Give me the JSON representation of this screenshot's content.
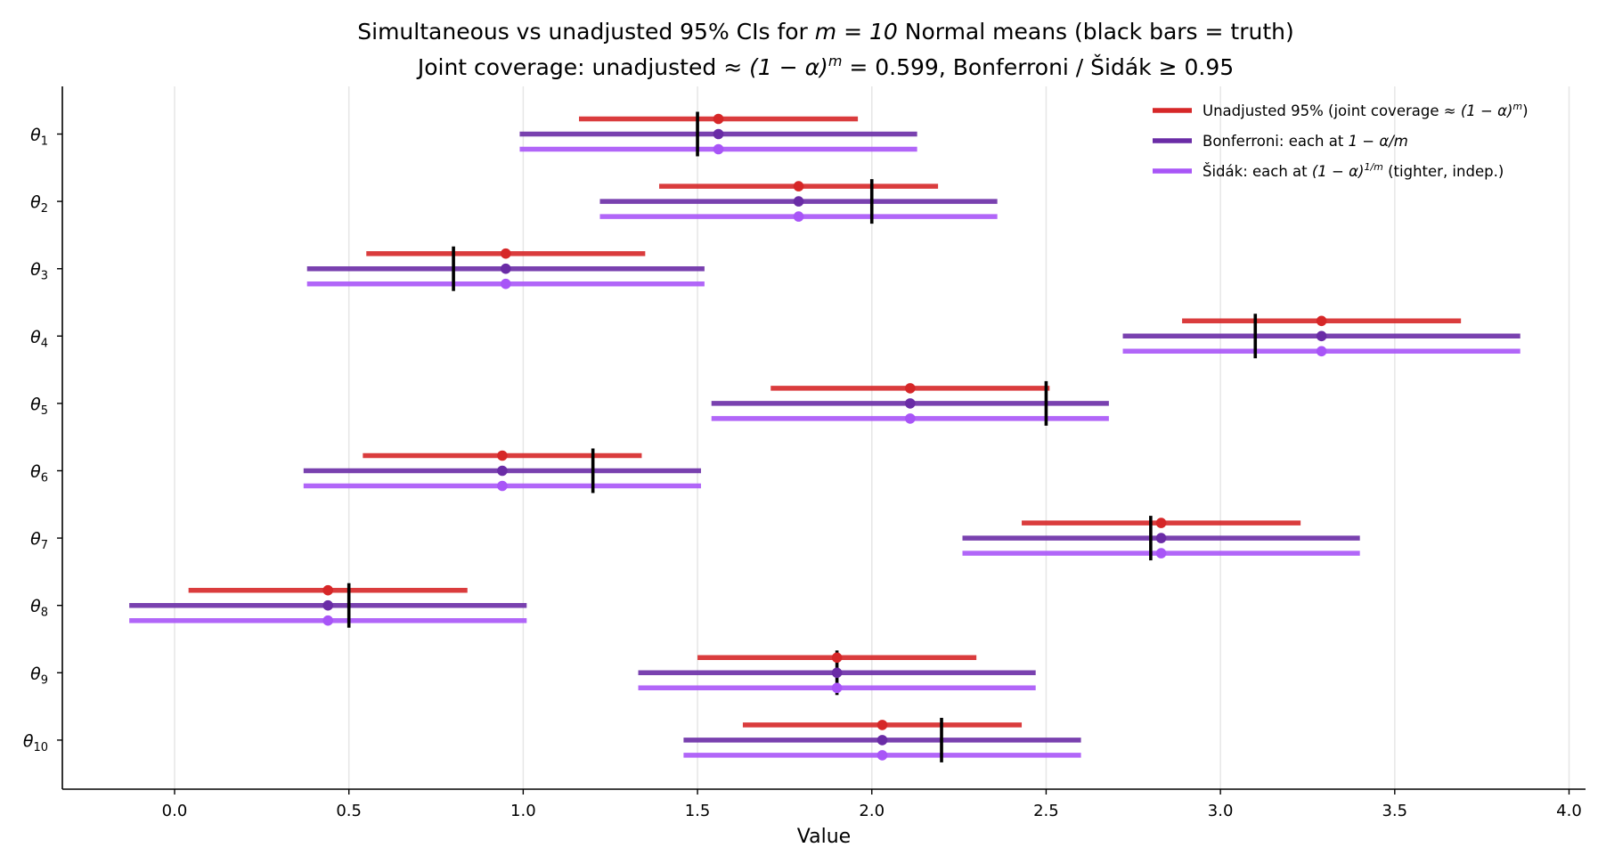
{
  "chart_data": {
    "type": "interval",
    "title_line1_pre": "Simultaneous vs unadjusted 95% CIs for ",
    "title_line1_math": "m = 10",
    "title_line1_post": " Normal means (black bars = truth)",
    "title_line2_pre": "Joint coverage:  unadjusted ",
    "title_line2_math": "≈ (1 − α)",
    "title_line2_sup": "m",
    "title_line2_post": " = 0.599,  Bonferroni / Šidák  ≥ 0.95",
    "xlabel": "Value",
    "xlim": [
      -0.32,
      4.05
    ],
    "xticks": [
      0.0,
      0.5,
      1.0,
      1.5,
      2.0,
      2.5,
      3.0,
      3.5,
      4.0
    ],
    "xtick_labels": [
      "0.0",
      "0.5",
      "1.0",
      "1.5",
      "2.0",
      "2.5",
      "3.0",
      "3.5",
      "4.0"
    ],
    "grid": "vertical",
    "legend_position": "top-right",
    "categories": [
      {
        "sym": "θ",
        "sub": "1"
      },
      {
        "sym": "θ",
        "sub": "2"
      },
      {
        "sym": "θ",
        "sub": "3"
      },
      {
        "sym": "θ",
        "sub": "4"
      },
      {
        "sym": "θ",
        "sub": "5"
      },
      {
        "sym": "θ",
        "sub": "6"
      },
      {
        "sym": "θ",
        "sub": "7"
      },
      {
        "sym": "θ",
        "sub": "8"
      },
      {
        "sym": "θ",
        "sub": "9"
      },
      {
        "sym": "θ",
        "sub": "10"
      }
    ],
    "truth": [
      1.5,
      2.0,
      0.8,
      3.1,
      2.5,
      1.2,
      2.8,
      0.5,
      1.9,
      2.2
    ],
    "estimates": [
      1.56,
      1.79,
      0.95,
      3.29,
      2.11,
      0.94,
      2.83,
      0.44,
      1.9,
      2.03
    ],
    "series": [
      {
        "key": "unadjusted",
        "legend_pre": "Unadjusted 95% (joint coverage ",
        "legend_math": "≈ (1 − α)",
        "legend_sup": "m",
        "legend_post": ")",
        "color": "#d62728",
        "lower": [
          1.16,
          1.39,
          0.55,
          2.89,
          1.71,
          0.54,
          2.43,
          0.04,
          1.5,
          1.63
        ],
        "upper": [
          1.96,
          2.19,
          1.35,
          3.69,
          2.51,
          1.34,
          3.23,
          0.84,
          2.3,
          2.43
        ]
      },
      {
        "key": "bonferroni",
        "legend_pre": "Bonferroni: each at ",
        "legend_math": "1 − α/m",
        "legend_sup": "",
        "legend_post": "",
        "color": "#6a2ca6",
        "lower": [
          0.99,
          1.22,
          0.38,
          2.72,
          1.54,
          0.37,
          2.26,
          -0.13,
          1.33,
          1.46
        ],
        "upper": [
          2.13,
          2.36,
          1.52,
          3.86,
          2.68,
          1.51,
          3.4,
          1.01,
          2.47,
          2.6
        ]
      },
      {
        "key": "sidak",
        "legend_pre": "Šidák: each at ",
        "legend_math": "(1 − α)",
        "legend_sup": "1/m",
        "legend_post": " (tighter, indep.)",
        "color": "#a855f7",
        "lower": [
          0.99,
          1.22,
          0.38,
          2.72,
          1.54,
          0.37,
          2.26,
          -0.13,
          1.33,
          1.46
        ],
        "upper": [
          2.13,
          2.36,
          1.52,
          3.86,
          2.68,
          1.51,
          3.4,
          1.01,
          2.47,
          2.6
        ]
      }
    ]
  }
}
